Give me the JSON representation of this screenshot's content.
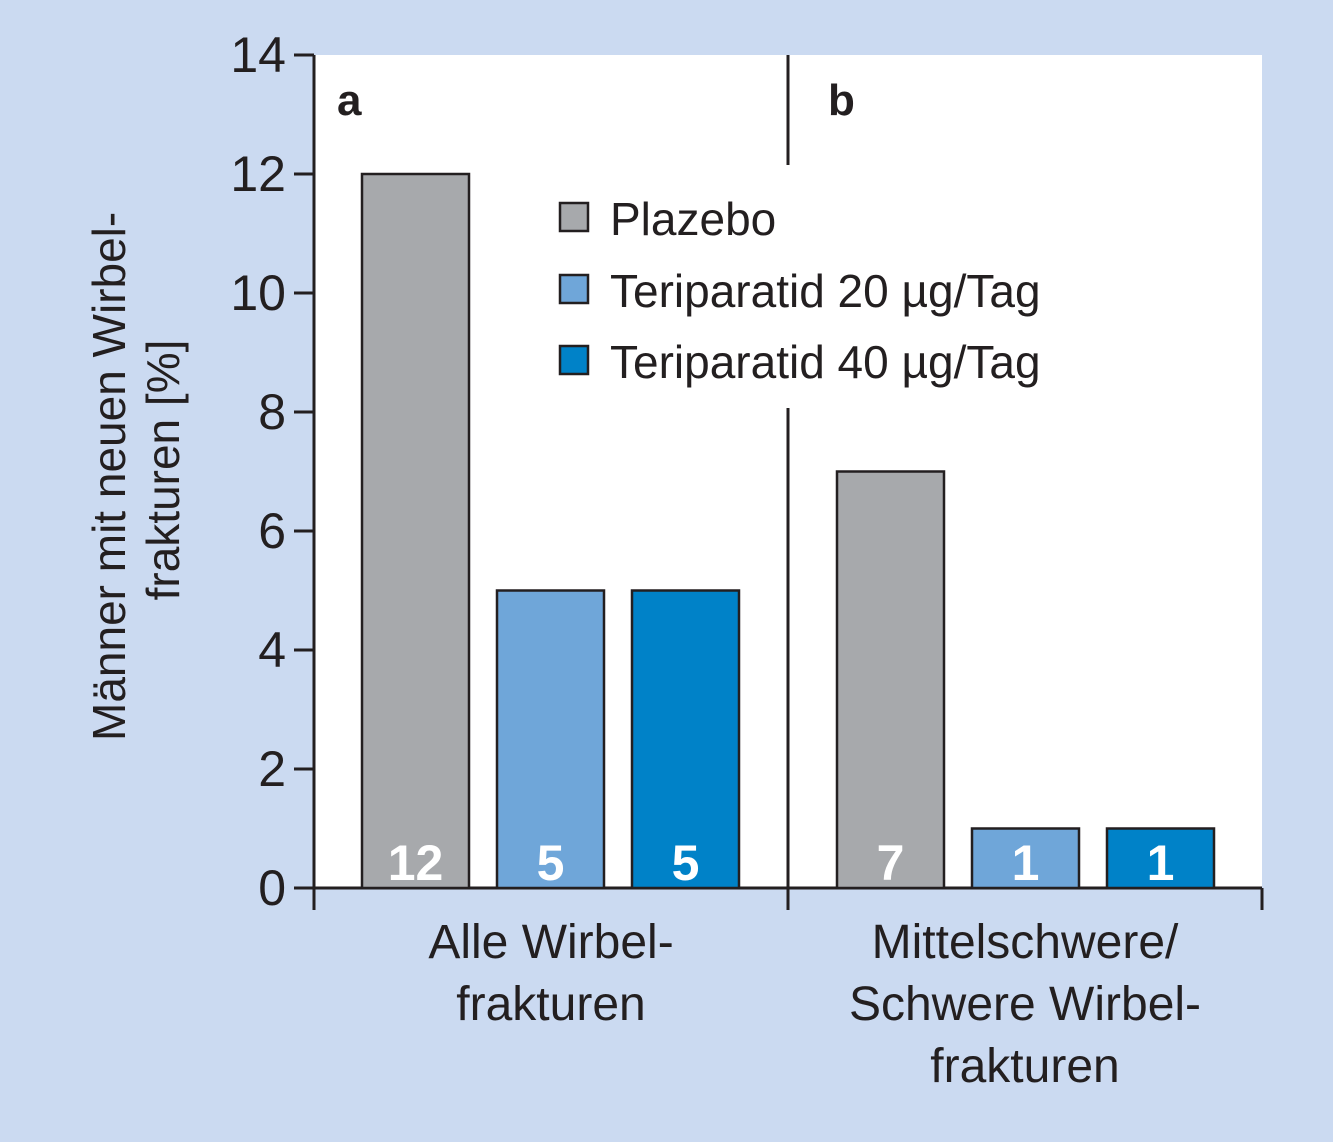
{
  "chart_data": {
    "type": "bar",
    "ylabel_lines": [
      "Männer mit neuen Wirbel-",
      "frakturen [%]"
    ],
    "ylim": [
      0,
      14
    ],
    "yticks": [
      0,
      2,
      4,
      6,
      8,
      10,
      12,
      14
    ],
    "grid": false,
    "legend_position": "top-center",
    "panels": [
      "a",
      "b"
    ],
    "categories": [
      {
        "lines": [
          "Alle Wirbel-",
          "frakturen"
        ]
      },
      {
        "lines": [
          "Mittelschwere/",
          "Schwere Wirbel-",
          "frakturen"
        ]
      }
    ],
    "series": [
      {
        "name": "Plazebo",
        "color": "#a7a9ac",
        "values": [
          12,
          7
        ],
        "value_labels": [
          "12",
          "7"
        ]
      },
      {
        "name": "Teriparatid 20 µg/Tag",
        "color": "#6fa6d9",
        "values": [
          5,
          1
        ],
        "value_labels": [
          "5",
          "1"
        ]
      },
      {
        "name": "Teriparatid 40 µg/Tag",
        "color": "#0082c8",
        "values": [
          5,
          1
        ],
        "value_labels": [
          "5",
          "1"
        ]
      }
    ]
  },
  "colors": {
    "background": "#cbdaf1",
    "plot": "#ffffff",
    "axis": "#231f20"
  }
}
